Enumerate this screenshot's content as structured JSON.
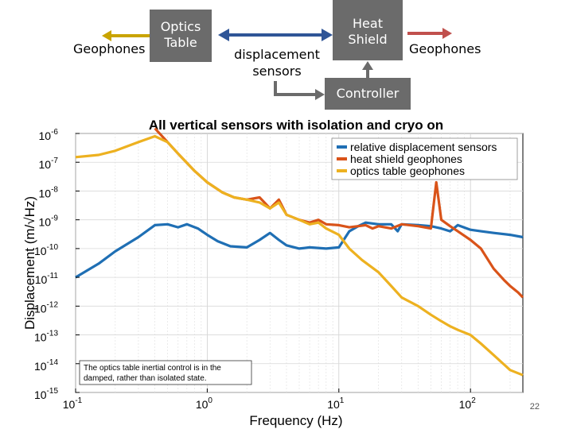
{
  "diagram": {
    "optics_table_label": [
      "Optics",
      "Table"
    ],
    "heat_shield_label": [
      "Heat",
      "Shield"
    ],
    "controller_label": "Controller",
    "left_geophones_label": "Geophones",
    "right_geophones_label": "Geophones",
    "displacement_sensors_label": [
      "displacement",
      "sensors"
    ],
    "colors": {
      "box": "#6b6b6b",
      "left_arrow": "#c9a400",
      "double_arrow": "#2f5597",
      "right_arrow": "#c0504d",
      "controller_arrow": "#6b6b6b"
    }
  },
  "slide_number": "22",
  "chart_data": {
    "type": "line",
    "title": "All vertical sensors with isolation and cryo on",
    "xlabel": "Frequency (Hz)",
    "ylabel": "Displacement (m/√Hz)",
    "xscale": "log",
    "yscale": "log",
    "xlim": [
      0.1,
      250
    ],
    "ylim": [
      1e-15,
      1e-06
    ],
    "x_ticks": [
      {
        "base": "10",
        "exp": "-1",
        "value": 0.1
      },
      {
        "base": "10",
        "exp": "0",
        "value": 1
      },
      {
        "base": "10",
        "exp": "1",
        "value": 10
      },
      {
        "base": "10",
        "exp": "2",
        "value": 100
      }
    ],
    "y_ticks": [
      {
        "base": "10",
        "exp": "-6",
        "value": 1e-06
      },
      {
        "base": "10",
        "exp": "-7",
        "value": 1e-07
      },
      {
        "base": "10",
        "exp": "-8",
        "value": 1e-08
      },
      {
        "base": "10",
        "exp": "-9",
        "value": 1e-09
      },
      {
        "base": "10",
        "exp": "-10",
        "value": 1e-10
      },
      {
        "base": "10",
        "exp": "-11",
        "value": 1e-11
      },
      {
        "base": "10",
        "exp": "-12",
        "value": 1e-12
      },
      {
        "base": "10",
        "exp": "-13",
        "value": 1e-13
      },
      {
        "base": "10",
        "exp": "-14",
        "value": 1e-14
      },
      {
        "base": "10",
        "exp": "-15",
        "value": 1e-15
      }
    ],
    "grid": true,
    "legend_position": "top-right",
    "annotation": [
      "The optics table inertial control is in the",
      "damped, rather than isolated state."
    ],
    "series": [
      {
        "name": "relative displacement sensors",
        "color": "#1f6fb4",
        "points": [
          [
            0.1,
            1e-11
          ],
          [
            0.15,
            3e-11
          ],
          [
            0.2,
            8e-11
          ],
          [
            0.3,
            2.5e-10
          ],
          [
            0.4,
            6.5e-10
          ],
          [
            0.5,
            7e-10
          ],
          [
            0.6,
            5.5e-10
          ],
          [
            0.7,
            7e-10
          ],
          [
            0.85,
            5e-10
          ],
          [
            1.0,
            3e-10
          ],
          [
            1.2,
            1.8e-10
          ],
          [
            1.5,
            1.2e-10
          ],
          [
            2.0,
            1.1e-10
          ],
          [
            2.5,
            2e-10
          ],
          [
            3.0,
            3.5e-10
          ],
          [
            3.5,
            2e-10
          ],
          [
            4.0,
            1.3e-10
          ],
          [
            5.0,
            1e-10
          ],
          [
            6.0,
            1.1e-10
          ],
          [
            8.0,
            1e-10
          ],
          [
            10.0,
            1.1e-10
          ],
          [
            12.0,
            4e-10
          ],
          [
            14.0,
            6e-10
          ],
          [
            16.0,
            8e-10
          ],
          [
            20.0,
            7e-10
          ],
          [
            25.0,
            7e-10
          ],
          [
            28.0,
            4e-10
          ],
          [
            30.0,
            7e-10
          ],
          [
            40.0,
            6.5e-10
          ],
          [
            50.0,
            6e-10
          ],
          [
            60.0,
            5e-10
          ],
          [
            70.0,
            4e-10
          ],
          [
            80.0,
            6.5e-10
          ],
          [
            100.0,
            4.5e-10
          ],
          [
            120.0,
            4e-10
          ],
          [
            150.0,
            3.5e-10
          ],
          [
            200.0,
            3e-10
          ],
          [
            250.0,
            2.5e-10
          ]
        ]
      },
      {
        "name": "heat shield geophones",
        "color": "#d95319",
        "points": [
          [
            0.4,
            1.5e-06
          ],
          [
            0.5,
            5e-07
          ],
          [
            0.6,
            2e-07
          ],
          [
            0.8,
            5e-08
          ],
          [
            1.0,
            2e-08
          ],
          [
            1.3,
            9e-09
          ],
          [
            1.6,
            6e-09
          ],
          [
            2.0,
            5e-09
          ],
          [
            2.5,
            6e-09
          ],
          [
            3.0,
            2.5e-09
          ],
          [
            3.5,
            5e-09
          ],
          [
            4.0,
            1.5e-09
          ],
          [
            5.0,
            1e-09
          ],
          [
            6.0,
            8e-10
          ],
          [
            7.0,
            1e-09
          ],
          [
            8.0,
            7e-10
          ],
          [
            10.0,
            6.5e-10
          ],
          [
            12.0,
            5.5e-10
          ],
          [
            14.0,
            6e-10
          ],
          [
            16.0,
            6.5e-10
          ],
          [
            18.0,
            5e-10
          ],
          [
            20.0,
            6e-10
          ],
          [
            25.0,
            5e-10
          ],
          [
            30.0,
            7e-10
          ],
          [
            40.0,
            6e-10
          ],
          [
            50.0,
            5e-10
          ],
          [
            55.0,
            2e-08
          ],
          [
            60.0,
            1e-09
          ],
          [
            70.0,
            6e-10
          ],
          [
            80.0,
            4e-10
          ],
          [
            100.0,
            2e-10
          ],
          [
            120.0,
            1e-10
          ],
          [
            150.0,
            2e-11
          ],
          [
            180.0,
            8e-12
          ],
          [
            200.0,
            5e-12
          ],
          [
            230.0,
            3e-12
          ],
          [
            250.0,
            2e-12
          ]
        ]
      },
      {
        "name": "optics table geophones",
        "color": "#edb120",
        "points": [
          [
            0.1,
            1.5e-07
          ],
          [
            0.15,
            1.8e-07
          ],
          [
            0.2,
            2.5e-07
          ],
          [
            0.3,
            5e-07
          ],
          [
            0.4,
            8e-07
          ],
          [
            0.5,
            5e-07
          ],
          [
            0.6,
            2e-07
          ],
          [
            0.8,
            5e-08
          ],
          [
            1.0,
            2e-08
          ],
          [
            1.3,
            9e-09
          ],
          [
            1.6,
            6e-09
          ],
          [
            2.0,
            5e-09
          ],
          [
            2.5,
            4e-09
          ],
          [
            3.0,
            2.5e-09
          ],
          [
            3.5,
            4e-09
          ],
          [
            4.0,
            1.5e-09
          ],
          [
            5.0,
            1e-09
          ],
          [
            6.0,
            7e-10
          ],
          [
            7.0,
            8e-10
          ],
          [
            8.0,
            5e-10
          ],
          [
            10.0,
            3e-10
          ],
          [
            12.0,
            1e-10
          ],
          [
            15.0,
            4e-11
          ],
          [
            20.0,
            1.5e-11
          ],
          [
            25.0,
            5e-12
          ],
          [
            30.0,
            2e-12
          ],
          [
            40.0,
            1e-12
          ],
          [
            50.0,
            5e-13
          ],
          [
            60.0,
            3e-13
          ],
          [
            70.0,
            2e-13
          ],
          [
            80.0,
            1.5e-13
          ],
          [
            100.0,
            1e-13
          ],
          [
            120.0,
            5e-14
          ],
          [
            150.0,
            2e-14
          ],
          [
            200.0,
            6e-15
          ],
          [
            250.0,
            4e-15
          ]
        ]
      }
    ]
  }
}
